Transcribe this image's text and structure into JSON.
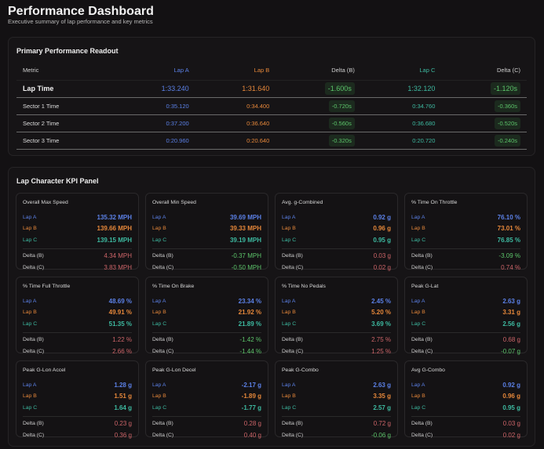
{
  "header": {
    "title": "Performance Dashboard",
    "subtitle": "Executive summary of lap performance and key metrics"
  },
  "colors": {
    "lap_a": "#5b80e6",
    "lap_b": "#e5873a",
    "lap_c": "#3db9a0",
    "delta_better": "#5cc46a",
    "delta_worse": "#cc6468"
  },
  "readout": {
    "title": "Primary Performance Readout",
    "columns": [
      "Metric",
      "Lap A",
      "Lap B",
      "Delta (B)",
      "Lap C",
      "Delta (C)"
    ],
    "rows": [
      {
        "metric": "Lap Time",
        "lap_a": "1:33.240",
        "lap_b": "1:31.640",
        "delta_b": "-1.600s",
        "lap_c": "1:32.120",
        "delta_c": "-1.120s"
      },
      {
        "metric": "Sector 1 Time",
        "lap_a": "0:35.120",
        "lap_b": "0:34.400",
        "delta_b": "-0.720s",
        "lap_c": "0:34.760",
        "delta_c": "-0.360s"
      },
      {
        "metric": "Sector 2 Time",
        "lap_a": "0:37.200",
        "lap_b": "0:36.640",
        "delta_b": "-0.560s",
        "lap_c": "0:36.680",
        "delta_c": "-0.520s"
      },
      {
        "metric": "Sector 3 Time",
        "lap_a": "0:20.960",
        "lap_b": "0:20.640",
        "delta_b": "-0.320s",
        "lap_c": "0:20.720",
        "delta_c": "-0.240s"
      }
    ]
  },
  "kpi": {
    "title": "Lap Character KPI Panel",
    "labels": {
      "lap_a": "Lap A",
      "lap_b": "Lap B",
      "lap_c": "Lap C",
      "delta_b": "Delta (B)",
      "delta_c": "Delta (C)"
    },
    "cards": [
      {
        "title": "Overall Max Speed",
        "lap_a": "135.32 MPH",
        "lap_b": "139.66 MPH",
        "lap_c": "139.15 MPH",
        "delta_b": "4.34 MPH",
        "delta_c": "3.83 MPH"
      },
      {
        "title": "Overall Min Speed",
        "lap_a": "39.69 MPH",
        "lap_b": "39.33 MPH",
        "lap_c": "39.19 MPH",
        "delta_b": "-0.37 MPH",
        "delta_c": "-0.50 MPH"
      },
      {
        "title": "Avg. g-Combined",
        "lap_a": "0.92 g",
        "lap_b": "0.96 g",
        "lap_c": "0.95 g",
        "delta_b": "0.03 g",
        "delta_c": "0.02 g"
      },
      {
        "title": "% Time On Throttle",
        "lap_a": "76.10 %",
        "lap_b": "73.01 %",
        "lap_c": "76.85 %",
        "delta_b": "-3.09 %",
        "delta_c": "0.74 %"
      },
      {
        "title": "% Time Full Throttle",
        "lap_a": "48.69 %",
        "lap_b": "49.91 %",
        "lap_c": "51.35 %",
        "delta_b": "1.22 %",
        "delta_c": "2.66 %"
      },
      {
        "title": "% Time On Brake",
        "lap_a": "23.34 %",
        "lap_b": "21.92 %",
        "lap_c": "21.89 %",
        "delta_b": "-1.42 %",
        "delta_c": "-1.44 %"
      },
      {
        "title": "% Time No Pedals",
        "lap_a": "2.45 %",
        "lap_b": "5.20 %",
        "lap_c": "3.69 %",
        "delta_b": "2.75 %",
        "delta_c": "1.25 %"
      },
      {
        "title": "Peak G-Lat",
        "lap_a": "2.63 g",
        "lap_b": "3.31 g",
        "lap_c": "2.56 g",
        "delta_b": "0.68 g",
        "delta_c": "-0.07 g"
      },
      {
        "title": "Peak G-Lon Accel",
        "lap_a": "1.28 g",
        "lap_b": "1.51 g",
        "lap_c": "1.64 g",
        "delta_b": "0.23 g",
        "delta_c": "0.36 g"
      },
      {
        "title": "Peak G-Lon Decel",
        "lap_a": "-2.17 g",
        "lap_b": "-1.89 g",
        "lap_c": "-1.77 g",
        "delta_b": "0.28 g",
        "delta_c": "0.40 g"
      },
      {
        "title": "Peak G-Combo",
        "lap_a": "2.63 g",
        "lap_b": "3.35 g",
        "lap_c": "2.57 g",
        "delta_b": "0.72 g",
        "delta_c": "-0.06 g"
      },
      {
        "title": "Avg G-Combo",
        "lap_a": "0.92 g",
        "lap_b": "0.96 g",
        "lap_c": "0.95 g",
        "delta_b": "0.03 g",
        "delta_c": "0.02 g"
      }
    ]
  }
}
